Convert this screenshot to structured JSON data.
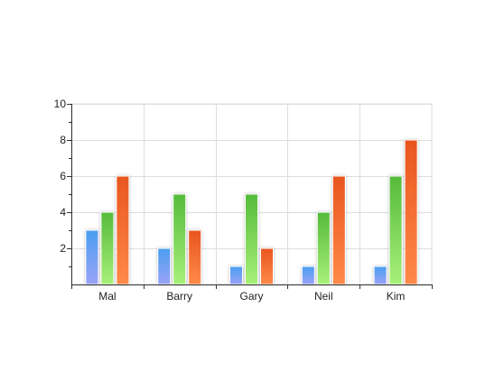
{
  "chart_data": {
    "type": "bar",
    "title": "",
    "xlabel": "",
    "ylabel": "",
    "categories": [
      "Mal",
      "Barry",
      "Gary",
      "Neil",
      "Kim"
    ],
    "series": [
      {
        "values": [
          3,
          2,
          1,
          1,
          1
        ],
        "color_top": "#4a9ef0",
        "color_bottom": "#9aa3f7"
      },
      {
        "values": [
          4,
          5,
          5,
          4,
          6
        ],
        "color_top": "#55bb3a",
        "color_bottom": "#a8f07a"
      },
      {
        "values": [
          6,
          3,
          2,
          6,
          8
        ],
        "color_top": "#e8561e",
        "color_bottom": "#ff8a48"
      }
    ],
    "ylim": [
      0,
      10
    ],
    "yticks": [
      2,
      4,
      6,
      8,
      10
    ],
    "grid": true,
    "legend": "none"
  }
}
